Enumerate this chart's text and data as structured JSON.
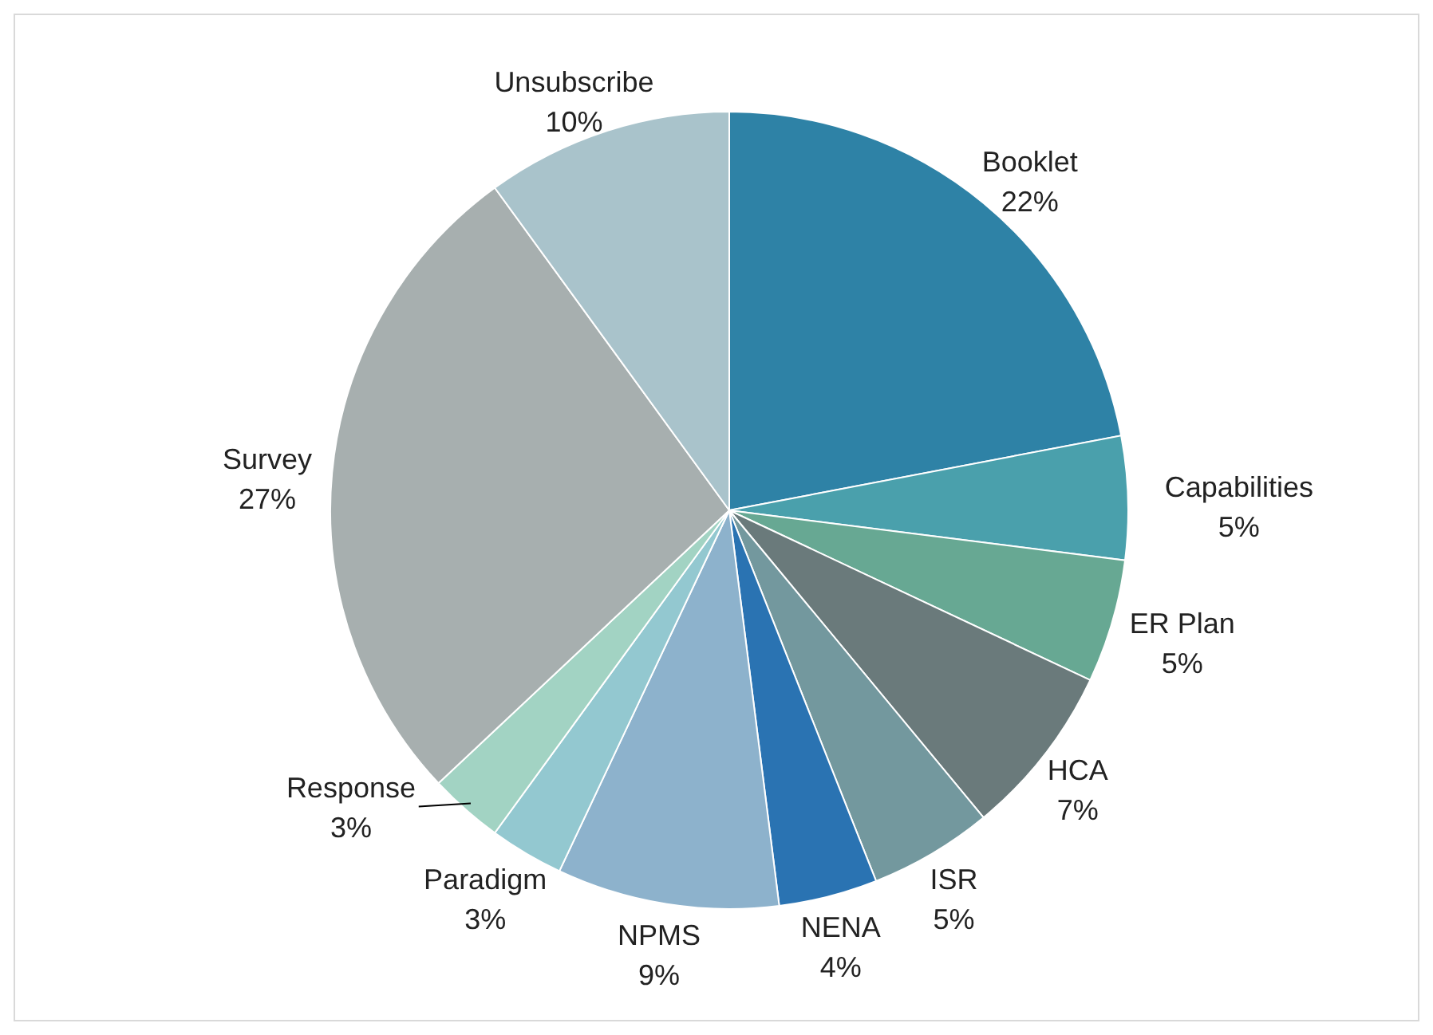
{
  "chart_data": {
    "type": "pie",
    "categories": [
      "Booklet",
      "Capabilities",
      "ER Plan",
      "HCA",
      "ISR",
      "NENA",
      "NPMS",
      "Paradigm",
      "Response",
      "Survey",
      "Unsubscribe"
    ],
    "values": [
      22,
      5,
      5,
      7,
      5,
      4,
      9,
      3,
      3,
      27,
      10
    ],
    "colors": [
      "#2e82a6",
      "#4aa0ac",
      "#67a893",
      "#6a7a7b",
      "#73989e",
      "#2a73b2",
      "#8db2cc",
      "#93c8d0",
      "#a2d3c3",
      "#a7afaf",
      "#a9c3cb"
    ],
    "value_labels": [
      "22%",
      "5%",
      "5%",
      "7%",
      "5%",
      "4%",
      "9%",
      "3%",
      "3%",
      "27%",
      "10%"
    ]
  }
}
